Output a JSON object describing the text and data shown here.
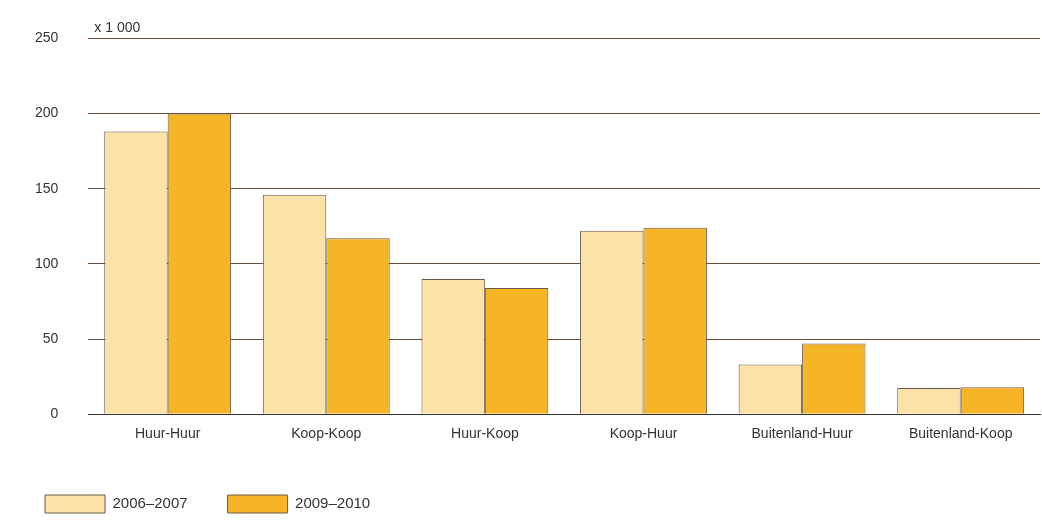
{
  "chart_data": {
    "type": "bar",
    "ylabel": "x 1 000",
    "categories": [
      "Huur-Huur",
      "Koop-Koop",
      "Huur-Koop",
      "Koop-Huur",
      "Buitenland-Huur",
      "Buitenland-Koop"
    ],
    "series": [
      {
        "name": "2006–2007",
        "color": "#fbe3a8",
        "values": [
          188,
          146,
          90,
          122,
          33,
          17.5
        ]
      },
      {
        "name": "2009–2010",
        "color": "#f6b526",
        "values": [
          200,
          117,
          84,
          124,
          47,
          18
        ]
      }
    ],
    "ylim": [
      0,
      250
    ],
    "yticks": [
      0,
      50,
      100,
      150,
      200,
      250
    ],
    "grid": "y",
    "legend": "bottom left"
  }
}
